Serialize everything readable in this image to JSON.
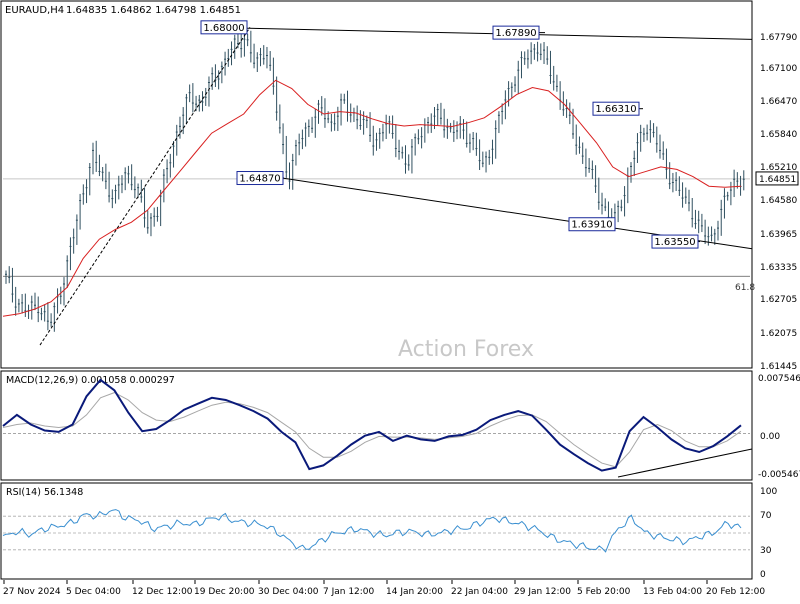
{
  "header": {
    "symbol": "EURAUD,H4",
    "ohlc": "1.64835 1.64862 1.64798 1.64851"
  },
  "watermark": "Action Forex",
  "colors": {
    "candles": "#2f4f5f",
    "ma": "#d92020",
    "macd_line": "#0a1a7a",
    "macd_signal": "#a8a8a8",
    "rsi_line": "#3a8fd0",
    "price_line": "#c8c8c8",
    "trend_line": "#000000",
    "label_border": "#1a2a9a"
  },
  "chart_data": [
    {
      "type": "candlestick",
      "panel": "price",
      "ylim": [
        1.6109,
        1.6836
      ],
      "y_ticks": [
        "1.67790",
        "1.67100",
        "1.66470",
        "1.65840",
        "1.65210",
        "1.64580",
        "1.63965",
        "1.63335",
        "1.62705",
        "1.62075",
        "1.61445"
      ],
      "current_price": "1.64851",
      "time_labels": [
        "27 Nov 2024",
        "5 Dec 04:00",
        "12 Dec 12:00",
        "19 Dec 20:00",
        "30 Dec 04:00",
        "7 Jan 12:00",
        "14 Jan 20:00",
        "22 Jan 04:00",
        "29 Jan 12:00",
        "5 Feb 20:00",
        "13 Feb 04:00",
        "20 Feb 12:00"
      ],
      "close_series": [
        1.628,
        1.623,
        1.621,
        1.6225,
        1.618,
        1.625,
        1.634,
        1.645,
        1.653,
        1.649,
        1.644,
        1.65,
        1.647,
        1.639,
        1.642,
        1.652,
        1.66,
        1.666,
        1.664,
        1.669,
        1.672,
        1.676,
        1.678,
        1.672,
        1.676,
        1.662,
        1.6487,
        1.656,
        1.66,
        1.663,
        1.66,
        1.664,
        1.662,
        1.66,
        1.656,
        1.66,
        1.656,
        1.651,
        1.658,
        1.66,
        1.662,
        1.658,
        1.659,
        1.656,
        1.651,
        1.657,
        1.665,
        1.67,
        1.674,
        1.676,
        1.672,
        1.666,
        1.66,
        1.654,
        1.649,
        1.643,
        1.6392,
        1.646,
        1.654,
        1.66,
        1.656,
        1.65,
        1.646,
        1.643,
        1.638,
        1.636,
        1.642,
        1.648,
        1.6485
      ],
      "ma_series": [
        1.62,
        1.6205,
        1.6215,
        1.623,
        1.626,
        1.632,
        1.636,
        1.638,
        1.6395,
        1.642,
        1.646,
        1.65,
        1.654,
        1.658,
        1.66,
        1.662,
        1.666,
        1.669,
        1.6673,
        1.664,
        1.662,
        1.6625,
        1.6622,
        1.661,
        1.66,
        1.6595,
        1.6598,
        1.6596,
        1.6594,
        1.6602,
        1.6612,
        1.6635,
        1.666,
        1.6675,
        1.6668,
        1.664,
        1.66,
        1.656,
        1.651,
        1.649,
        1.65,
        1.651,
        1.6505,
        1.649,
        1.647,
        1.6468,
        1.647
      ],
      "annotations": [
        {
          "text": "1.68000",
          "x": "19 Dec 20:00",
          "y": 1.68
        },
        {
          "text": "1.67890",
          "x": "29 Jan 12:00",
          "y": 1.6789
        },
        {
          "text": "1.66310",
          "x": "13 Feb 04:00",
          "y": 1.6631
        },
        {
          "text": "1.64870",
          "x": "30 Dec 04:00",
          "y": 1.6487
        },
        {
          "text": "1.63910",
          "x": "5 Feb 20:00",
          "y": 1.6391
        },
        {
          "text": "1.63550",
          "x": "20 Feb 12:00",
          "y": 1.6355
        }
      ],
      "fib_label": "61.8",
      "fib_level": 1.6283
    },
    {
      "type": "line",
      "panel": "macd",
      "title": "MACD(12,26,9) 0.001058 0.000297",
      "y_ticks": [
        "0.007546",
        "0.00",
        "-0.005467"
      ],
      "ylim": [
        -0.006,
        0.008
      ],
      "macd_series": [
        0.001,
        0.0025,
        0.0012,
        0.0004,
        0.0002,
        0.0012,
        0.005,
        0.0072,
        0.0058,
        0.0028,
        0.0003,
        0.0006,
        0.0018,
        0.0032,
        0.004,
        0.0048,
        0.0045,
        0.0038,
        0.003,
        0.002,
        0.0002,
        -0.0012,
        -0.0048,
        -0.0043,
        -0.003,
        -0.0015,
        -0.0003,
        0.0002,
        -0.001,
        -0.0003,
        -0.0008,
        -0.001,
        -0.0004,
        -0.0002,
        0.0005,
        0.0018,
        0.0025,
        0.003,
        0.0024,
        0.0005,
        -0.0015,
        -0.0028,
        -0.004,
        -0.005,
        -0.0046,
        0.0003,
        0.0022,
        0.0008,
        -0.0008,
        -0.002,
        -0.0025,
        -0.0017,
        -0.0004,
        0.0011
      ],
      "signal_series": [
        0.0008,
        0.0012,
        0.0014,
        0.001,
        0.0008,
        0.001,
        0.0025,
        0.0048,
        0.0055,
        0.0045,
        0.0028,
        0.0018,
        0.0016,
        0.0022,
        0.003,
        0.0038,
        0.0042,
        0.004,
        0.0035,
        0.0028,
        0.0015,
        0.0002,
        -0.002,
        -0.0032,
        -0.0032,
        -0.0024,
        -0.0012,
        -0.0004,
        -0.0005,
        -0.0005,
        -0.0006,
        -0.0008,
        -0.0006,
        -0.0004,
        0.0,
        0.001,
        0.0018,
        0.0024,
        0.0025,
        0.0016,
        0.0,
        -0.0015,
        -0.0028,
        -0.004,
        -0.0045,
        -0.0025,
        0.0005,
        0.0012,
        0.0004,
        -0.001,
        -0.0018,
        -0.0018,
        -0.001,
        0.0003
      ]
    },
    {
      "type": "line",
      "panel": "rsi",
      "title": "RSI(14) 56.1348",
      "y_ticks": [
        "100",
        "70",
        "30",
        "0"
      ],
      "ylim": [
        0,
        100
      ],
      "levels": [
        70,
        50,
        30
      ],
      "rsi_series": [
        45,
        52,
        48,
        55,
        58,
        62,
        72,
        70,
        78,
        68,
        65,
        55,
        58,
        62,
        60,
        66,
        70,
        64,
        62,
        60,
        52,
        40,
        30,
        38,
        48,
        52,
        55,
        50,
        47,
        51,
        52,
        48,
        50,
        54,
        56,
        63,
        68,
        64,
        60,
        55,
        46,
        40,
        36,
        32,
        30,
        55,
        68,
        50,
        46,
        42,
        40,
        46,
        50,
        62,
        56
      ]
    }
  ]
}
